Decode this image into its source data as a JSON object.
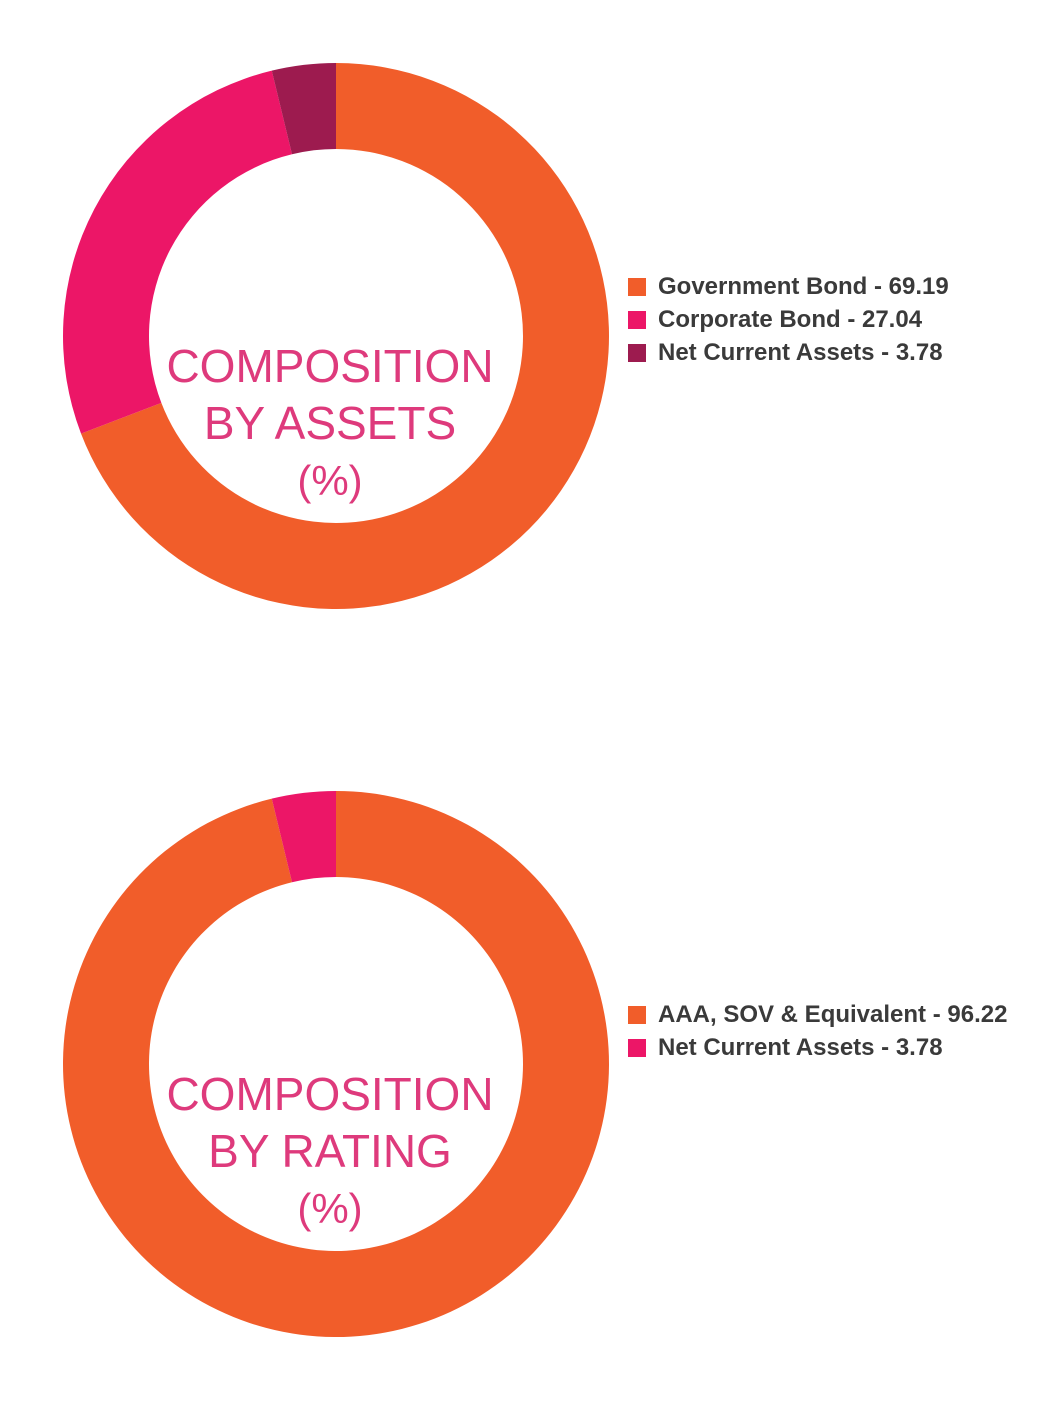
{
  "charts": [
    {
      "id": "assets",
      "center_lines": [
        "COMPOSITION",
        "BY ASSETS",
        "(%)"
      ],
      "legend": [
        {
          "label": "Government Bond - 69.19",
          "color": "#f15d2a"
        },
        {
          "label": "Corporate Bond - 27.04",
          "color": "#ec1667"
        },
        {
          "label": "Net Current Assets - 3.78",
          "color": "#9d1b4f"
        }
      ]
    },
    {
      "id": "rating",
      "center_lines": [
        "COMPOSITION",
        "BY RATING",
        "(%)"
      ],
      "legend": [
        {
          "label": "AAA, SOV & Equivalent - 96.22",
          "color": "#f15d2a"
        },
        {
          "label": "Net Current Assets - 3.78",
          "color": "#ec1667"
        }
      ]
    }
  ],
  "chart_data": [
    {
      "type": "pie",
      "title": "COMPOSITION BY ASSETS (%)",
      "categories": [
        "Government Bond",
        "Corporate Bond",
        "Net Current Assets"
      ],
      "values": [
        69.19,
        27.04,
        3.78
      ],
      "colors": [
        "#f15d2a",
        "#ec1667",
        "#9d1b4f"
      ],
      "donut": true,
      "legend_position": "right"
    },
    {
      "type": "pie",
      "title": "COMPOSITION BY RATING (%)",
      "categories": [
        "AAA, SOV & Equivalent",
        "Net Current Assets"
      ],
      "values": [
        96.22,
        3.78
      ],
      "colors": [
        "#f15d2a",
        "#ec1667"
      ],
      "donut": true,
      "legend_position": "right"
    }
  ]
}
